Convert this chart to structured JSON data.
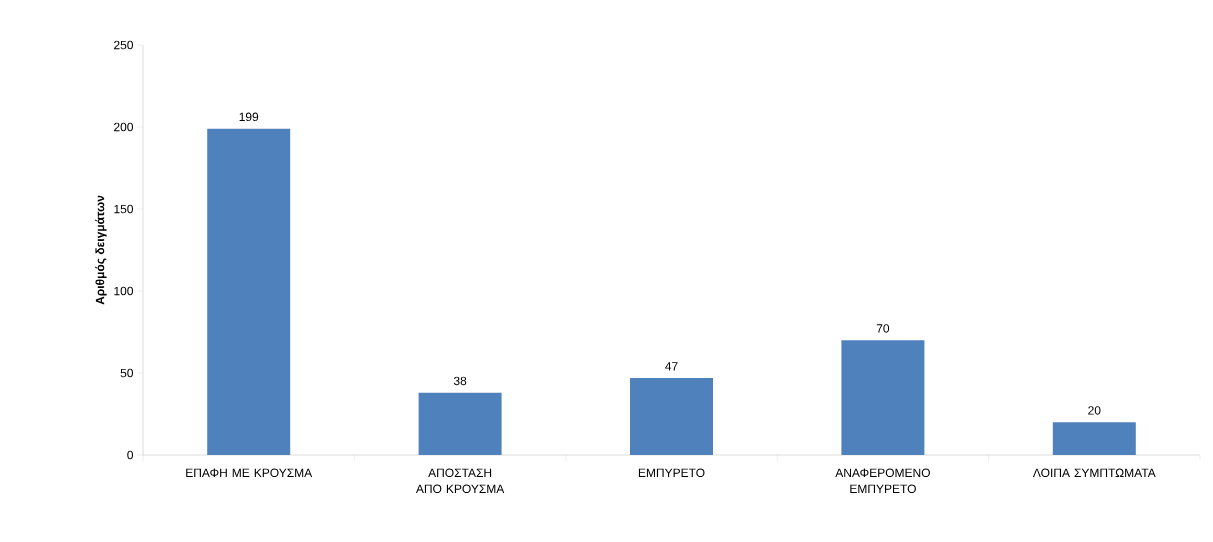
{
  "chart_data": {
    "type": "bar",
    "ylabel": "Αριθμός δειγμάτων",
    "categories": [
      "ΕΠΑΦΗ ΜΕ ΚΡΟΥΣΜΑ",
      "ΑΠΟΣΤΑΣΗ ΑΠΟ ΚΡΟΥΣΜΑ",
      "ΕΜΠΥΡΕΤΟ",
      "ΑΝΑΦΕΡΟΜΕΝΟ ΕΜΠΥΡΕΤΟ",
      "ΛΟΙΠΑ ΣΥΜΠΤΩΜΑΤΑ"
    ],
    "values": [
      199,
      38,
      47,
      70,
      20
    ],
    "color": "#4f81bd",
    "ylim": [
      0,
      250
    ],
    "yticks": [
      0,
      50,
      100,
      150,
      200,
      250
    ],
    "data_labels": true
  }
}
